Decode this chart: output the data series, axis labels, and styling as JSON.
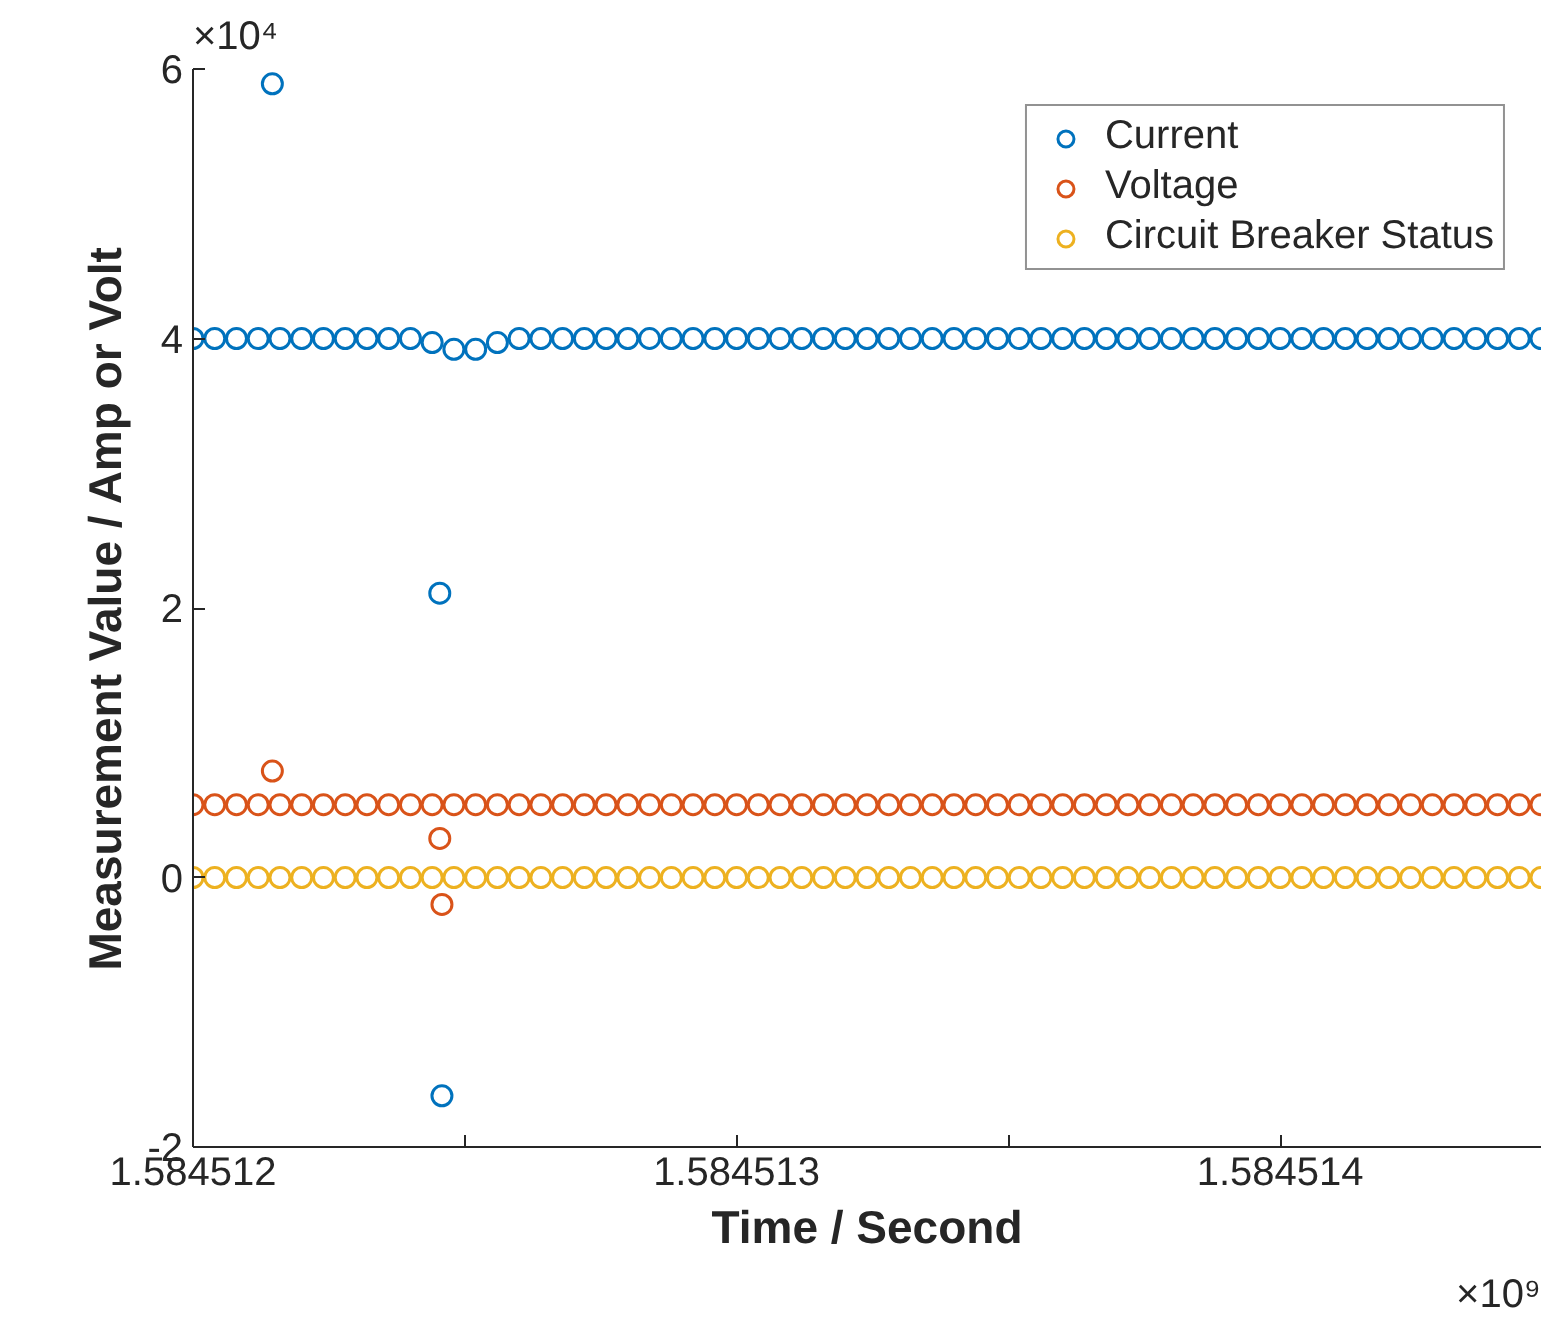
{
  "chart_data": {
    "type": "scatter",
    "xlabel": "Time / Second",
    "ylabel": "Measurement Value / Amp or Volt",
    "annotations": [
      "×10⁴",
      "×10⁹"
    ],
    "x": [
      1.584512,
      1.58451204,
      1.58451208,
      1.58451212,
      1.584512146,
      1.58451216,
      1.5845122,
      1.58451224,
      1.58451228,
      1.58451232,
      1.58451236,
      1.5845124,
      1.58451244,
      1.584512454,
      1.584512458,
      1.58451248,
      1.58451252,
      1.58451256,
      1.5845126,
      1.58451264,
      1.58451268,
      1.58451272,
      1.58451276,
      1.5845128,
      1.58451284,
      1.58451288,
      1.58451292,
      1.58451296,
      1.584513,
      1.58451304,
      1.58451308,
      1.58451312,
      1.58451316,
      1.5845132,
      1.58451324,
      1.58451328,
      1.58451332,
      1.58451336,
      1.5845134,
      1.58451344,
      1.58451348,
      1.58451352,
      1.58451356,
      1.5845136,
      1.58451364,
      1.58451368,
      1.58451372,
      1.58451376,
      1.5845138,
      1.58451384,
      1.58451388,
      1.58451392,
      1.58451396,
      1.584514,
      1.58451404,
      1.58451408,
      1.58451412,
      1.58451416,
      1.5845142,
      1.58451424,
      1.58451428,
      1.58451432,
      1.58451436,
      1.5845144,
      1.58451444,
      1.58451448
    ],
    "series": [
      {
        "name": "Current",
        "color": "#0072bd",
        "values": [
          4,
          4,
          4,
          4,
          5.89,
          4,
          4,
          4,
          4,
          4,
          4,
          4,
          3.97,
          2.11,
          -1.62,
          3.92,
          3.92,
          3.97,
          4,
          4,
          4,
          4,
          4,
          4,
          4,
          4,
          4,
          4,
          4,
          4,
          4,
          4,
          4,
          4,
          4,
          4,
          4,
          4,
          4,
          4,
          4,
          4,
          4,
          4,
          4,
          4,
          4,
          4,
          4,
          4,
          4,
          4,
          4,
          4,
          4,
          4,
          4,
          4,
          4,
          4,
          4,
          4,
          4,
          4,
          4,
          4
        ]
      },
      {
        "name": "Voltage",
        "color": "#d95319",
        "values": [
          0.54,
          0.54,
          0.54,
          0.54,
          0.79,
          0.54,
          0.54,
          0.54,
          0.54,
          0.54,
          0.54,
          0.54,
          0.54,
          0.29,
          -0.2,
          0.54,
          0.54,
          0.54,
          0.54,
          0.54,
          0.54,
          0.54,
          0.54,
          0.54,
          0.54,
          0.54,
          0.54,
          0.54,
          0.54,
          0.54,
          0.54,
          0.54,
          0.54,
          0.54,
          0.54,
          0.54,
          0.54,
          0.54,
          0.54,
          0.54,
          0.54,
          0.54,
          0.54,
          0.54,
          0.54,
          0.54,
          0.54,
          0.54,
          0.54,
          0.54,
          0.54,
          0.54,
          0.54,
          0.54,
          0.54,
          0.54,
          0.54,
          0.54,
          0.54,
          0.54,
          0.54,
          0.54,
          0.54,
          0.54,
          0.54,
          0.54
        ]
      },
      {
        "name": "Circuit Breaker Status",
        "color": "#edb120",
        "values": [
          0,
          0,
          0,
          0,
          null,
          0,
          0,
          0,
          0,
          0,
          0,
          0,
          0,
          null,
          null,
          0,
          0,
          0,
          0,
          0,
          0,
          0,
          0,
          0,
          0,
          0,
          0,
          0,
          0,
          0,
          0,
          0,
          0,
          0,
          0,
          0,
          0,
          0,
          0,
          0,
          0,
          0,
          0,
          0,
          0,
          0,
          0,
          0,
          0,
          0,
          0,
          0,
          0,
          0,
          0,
          0,
          0,
          0,
          0,
          0,
          0,
          0,
          0,
          0,
          0,
          0
        ]
      }
    ],
    "xlim": [
      1.584512,
      1.58451448
    ],
    "ylim": [
      -2,
      6
    ],
    "xticks": [
      1.584512,
      {
        "value": 1.5845125,
        "label": null
      },
      1.584513,
      {
        "value": 1.5845135,
        "label": null
      },
      1.584514
    ],
    "yticks": [
      -2,
      0,
      2,
      4,
      6
    ],
    "marker": "circle",
    "legend": "top right",
    "grid": false
  }
}
